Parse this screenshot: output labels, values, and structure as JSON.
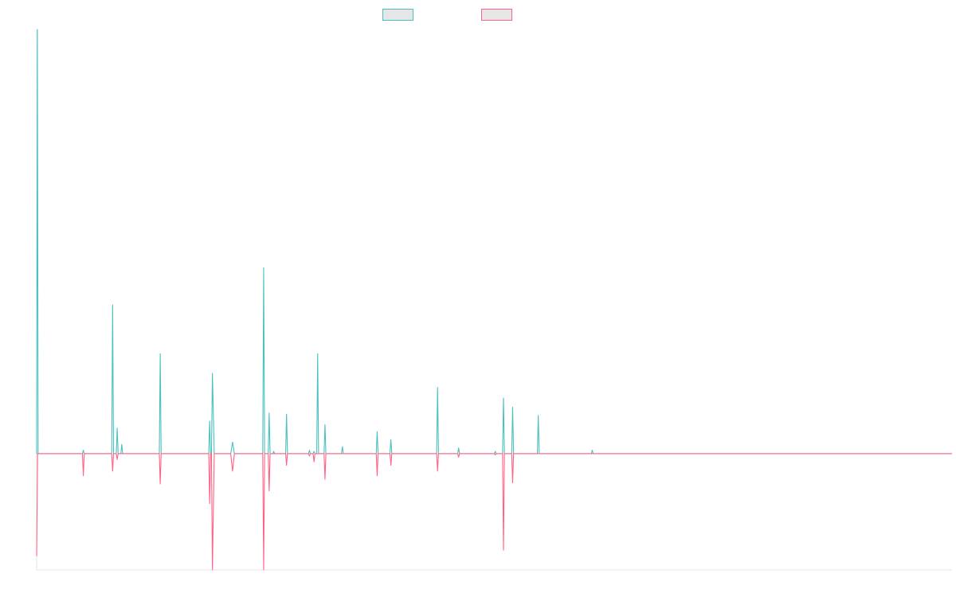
{
  "colors": {
    "series1": "#4bc0c0",
    "series2": "#ff6384",
    "legend_fill": "#e6e6e6",
    "axis": "#e6e6e6"
  },
  "chart_data": {
    "type": "line",
    "title": "",
    "xlabel": "",
    "ylabel": "",
    "grid": false,
    "legend_position": "top-center",
    "xlim": [
      0,
      1000
    ],
    "ylim": [
      -1.0,
      3.65
    ],
    "series": [
      {
        "color": "#4bc0c0",
        "points": [
          [
            0,
            0
          ],
          [
            0.8,
            3.65
          ],
          [
            1.6,
            0
          ],
          [
            50,
            0
          ],
          [
            51,
            0.03
          ],
          [
            52,
            0
          ],
          [
            82,
            0
          ],
          [
            83,
            1.28
          ],
          [
            84,
            0
          ],
          [
            87,
            0
          ],
          [
            88,
            0.22
          ],
          [
            89,
            0
          ],
          [
            92,
            0
          ],
          [
            93,
            0.08
          ],
          [
            94,
            0
          ],
          [
            134,
            0
          ],
          [
            135,
            0.86
          ],
          [
            136,
            0
          ],
          [
            188,
            0
          ],
          [
            189,
            0.28
          ],
          [
            190,
            0
          ],
          [
            191,
            0
          ],
          [
            192,
            0.69
          ],
          [
            194,
            0
          ],
          [
            212,
            0
          ],
          [
            214,
            0.1
          ],
          [
            216,
            0
          ],
          [
            247,
            0
          ],
          [
            248,
            1.6
          ],
          [
            249,
            0
          ],
          [
            253,
            0
          ],
          [
            254,
            0.35
          ],
          [
            255,
            0
          ],
          [
            258,
            0
          ],
          [
            259,
            0.02
          ],
          [
            260,
            0
          ],
          [
            272,
            0
          ],
          [
            273,
            0.34
          ],
          [
            274,
            0
          ],
          [
            297,
            0
          ],
          [
            298,
            0.03
          ],
          [
            299,
            0
          ],
          [
            302,
            0
          ],
          [
            303,
            0.02
          ],
          [
            304,
            0
          ],
          [
            306,
            0
          ],
          [
            307,
            0.86
          ],
          [
            308,
            0
          ],
          [
            314,
            0
          ],
          [
            315,
            0.25
          ],
          [
            316,
            0
          ],
          [
            333,
            0
          ],
          [
            334,
            0.06
          ],
          [
            335,
            0
          ],
          [
            371,
            0
          ],
          [
            372,
            0.19
          ],
          [
            373,
            0
          ],
          [
            386,
            0
          ],
          [
            387,
            0.12
          ],
          [
            388,
            0
          ],
          [
            437,
            0
          ],
          [
            438,
            0.57
          ],
          [
            439,
            0
          ],
          [
            460,
            0
          ],
          [
            461,
            0.05
          ],
          [
            462,
            0
          ],
          [
            500,
            0
          ],
          [
            501,
            0.02
          ],
          [
            502,
            0
          ],
          [
            509,
            0
          ],
          [
            510,
            0.48
          ],
          [
            511,
            0
          ],
          [
            519,
            0
          ],
          [
            520,
            0.4
          ],
          [
            521,
            0
          ],
          [
            547,
            0
          ],
          [
            548,
            0.33
          ],
          [
            549,
            0
          ],
          [
            606,
            0
          ],
          [
            607,
            0.03
          ],
          [
            608,
            0
          ],
          [
            1000,
            0
          ]
        ]
      },
      {
        "color": "#ff6384",
        "points": [
          [
            0,
            -0.88
          ],
          [
            1,
            0
          ],
          [
            50,
            0
          ],
          [
            51,
            -0.19
          ],
          [
            52,
            0
          ],
          [
            82,
            0
          ],
          [
            83,
            -0.15
          ],
          [
            84,
            0
          ],
          [
            87,
            0
          ],
          [
            88,
            -0.05
          ],
          [
            89,
            0
          ],
          [
            134,
            0
          ],
          [
            135,
            -0.26
          ],
          [
            136,
            0
          ],
          [
            188,
            0
          ],
          [
            189,
            -0.43
          ],
          [
            190,
            0
          ],
          [
            191,
            0
          ],
          [
            192,
            -1.0
          ],
          [
            194,
            0
          ],
          [
            212,
            0
          ],
          [
            214,
            -0.15
          ],
          [
            216,
            0
          ],
          [
            247,
            0
          ],
          [
            248,
            -1.0
          ],
          [
            249,
            0
          ],
          [
            253,
            0
          ],
          [
            254,
            -0.32
          ],
          [
            255,
            0
          ],
          [
            272,
            0
          ],
          [
            273,
            -0.1
          ],
          [
            274,
            0
          ],
          [
            297,
            0
          ],
          [
            298,
            -0.02
          ],
          [
            299,
            0
          ],
          [
            302,
            0
          ],
          [
            303,
            -0.07
          ],
          [
            304,
            0
          ],
          [
            314,
            0
          ],
          [
            315,
            -0.22
          ],
          [
            316,
            0
          ],
          [
            371,
            0
          ],
          [
            372,
            -0.19
          ],
          [
            373,
            0
          ],
          [
            386,
            0
          ],
          [
            387,
            -0.1
          ],
          [
            388,
            0
          ],
          [
            437,
            0
          ],
          [
            438,
            -0.15
          ],
          [
            439,
            0
          ],
          [
            460,
            0
          ],
          [
            461,
            -0.03
          ],
          [
            462,
            0
          ],
          [
            500,
            0
          ],
          [
            501,
            -0.01
          ],
          [
            502,
            0
          ],
          [
            509,
            0
          ],
          [
            510,
            -0.83
          ],
          [
            511,
            0
          ],
          [
            519,
            0
          ],
          [
            520,
            -0.25
          ],
          [
            521,
            0
          ],
          [
            1000,
            0
          ]
        ]
      }
    ]
  }
}
